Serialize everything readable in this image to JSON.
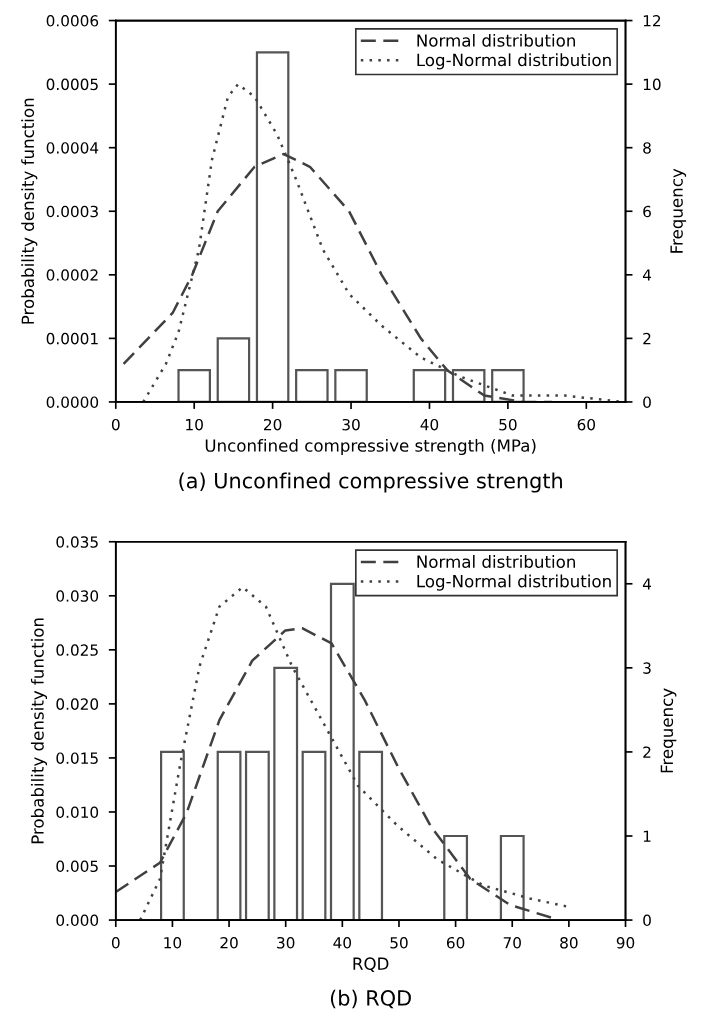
{
  "chart_data": [
    {
      "type": "line",
      "title": "(a) Unconfined compressive strength",
      "xlabel": "Unconfined compressive strength (MPa)",
      "ylabel": "Probability density function",
      "y2label": "Frequency",
      "xlim": [
        0,
        65
      ],
      "xticks": [
        0,
        10,
        20,
        30,
        40,
        50,
        60
      ],
      "ylim": [
        0,
        0.0006
      ],
      "yticks": [
        {
          "value": 0,
          "label": "0.0000"
        },
        {
          "value": 0.0001,
          "label": "0.0001"
        },
        {
          "value": 0.0002,
          "label": "0.0002"
        },
        {
          "value": 0.0003,
          "label": "0.0003"
        },
        {
          "value": 0.0004,
          "label": "0.0004"
        },
        {
          "value": 0.0005,
          "label": "0.0005"
        },
        {
          "value": 0.0006,
          "label": "0.0006"
        }
      ],
      "y2lim": [
        0,
        12
      ],
      "y2ticks": [
        0,
        2,
        4,
        6,
        8,
        10,
        12
      ],
      "legend": "top right",
      "grid": false,
      "series": [
        {
          "type": "bar",
          "axis": "y2",
          "color": "#555555",
          "x": [
            10,
            15,
            20,
            25,
            30,
            40,
            45,
            50
          ],
          "values": [
            1,
            2,
            11,
            1,
            1,
            1,
            1,
            1
          ]
        },
        {
          "name": "Normal distribution",
          "line_style": "dashed",
          "color": "#404040",
          "x": [
            1,
            7.25,
            9.75,
            13,
            17.7,
            21.4,
            24.75,
            29.75,
            33.9,
            38.9,
            42.25,
            47,
            52,
            55.6
          ],
          "values": [
            6e-05,
            0.00014,
            0.0002,
            0.0003,
            0.00037,
            0.00039,
            0.00037,
            0.0003,
            0.0002,
            0.0001,
            5e-05,
            1e-05,
            0,
            0
          ]
        },
        {
          "name": "Log-Normal distribution",
          "line_style": "dotted",
          "color": "#404040",
          "x": [
            3.5,
            6.4,
            8,
            10.6,
            12.25,
            14.3,
            15.6,
            17.7,
            20.6,
            23,
            26.4,
            29.75,
            33.9,
            38.9,
            43.9,
            50.6,
            57.25,
            64.75
          ],
          "values": [
            0,
            6e-05,
            0.00011,
            0.00024,
            0.00038,
            0.00048,
            0.0005,
            0.00048,
            0.00042,
            0.00035,
            0.00024,
            0.00017,
            0.00012,
            7e-05,
            4e-05,
            1e-05,
            1e-05,
            0
          ]
        }
      ]
    },
    {
      "type": "line",
      "title": "(b) RQD",
      "xlabel": "RQD",
      "ylabel": "Probability density function",
      "y2label": "Frequency",
      "xlim": [
        0,
        90
      ],
      "xticks": [
        0,
        10,
        20,
        30,
        40,
        50,
        60,
        70,
        80,
        90
      ],
      "ylim": [
        0,
        0.035
      ],
      "yticks": [
        {
          "value": 0,
          "label": "0.000"
        },
        {
          "value": 0.005,
          "label": "0.005"
        },
        {
          "value": 0.01,
          "label": "0.010"
        },
        {
          "value": 0.015,
          "label": "0.015"
        },
        {
          "value": 0.02,
          "label": "0.020"
        },
        {
          "value": 0.025,
          "label": "0.025"
        },
        {
          "value": 0.03,
          "label": "0.030"
        },
        {
          "value": 0.035,
          "label": "0.035"
        }
      ],
      "y2lim": [
        0,
        4.5
      ],
      "y2ticks": [
        0,
        1,
        2,
        3,
        4
      ],
      "legend": "top right",
      "grid": false,
      "series": [
        {
          "type": "bar",
          "axis": "y2",
          "color": "#555555",
          "x": [
            10,
            20,
            25,
            30,
            35,
            40,
            45,
            60,
            70
          ],
          "values": [
            2,
            2,
            2,
            3,
            2,
            4,
            2,
            1,
            1
          ]
        },
        {
          "name": "Normal distribution",
          "line_style": "dashed",
          "color": "#404040",
          "x": [
            0,
            7.8,
            12.5,
            18.3,
            24.1,
            29.95,
            32.9,
            38.1,
            43.9,
            49.8,
            55.6,
            62.6,
            69.6,
            77.7
          ],
          "values": [
            0.0026,
            0.0053,
            0.0099,
            0.0185,
            0.024,
            0.0268,
            0.027,
            0.0256,
            0.0204,
            0.0142,
            0.0087,
            0.0038,
            0.0014,
            0.0001
          ]
        },
        {
          "name": "Log-Normal distribution",
          "line_style": "dotted",
          "color": "#404040",
          "x": [
            4.3,
            7.8,
            11.3,
            14.8,
            18.3,
            22.4,
            26.5,
            31.1,
            36.9,
            42.8,
            49.8,
            56.8,
            64.9,
            73.1,
            80.1
          ],
          "values": [
            0,
            0.0038,
            0.0142,
            0.0235,
            0.029,
            0.0308,
            0.029,
            0.0235,
            0.018,
            0.0124,
            0.0087,
            0.0056,
            0.0032,
            0.002,
            0.0012
          ]
        }
      ]
    }
  ]
}
